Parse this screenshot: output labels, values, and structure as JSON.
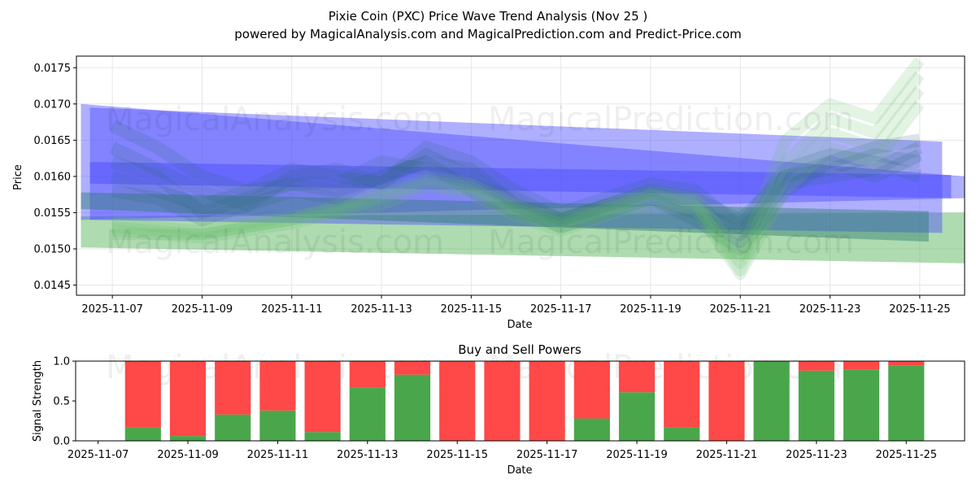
{
  "chart_data": [
    {
      "type": "area",
      "title": "Pixie Coin (PXC) Price Wave Trend Analysis (Nov 25 )",
      "subtitle": "powered by MagicalAnalysis.com and MagicalPrediction.com and Predict-Price.com",
      "xlabel": "Date",
      "ylabel": "Price",
      "xlim": [
        "2025-11-06.2",
        "2025-11-26.0"
      ],
      "ylim": [
        0.01436,
        0.01766
      ],
      "x_ticks": [
        "2025-11-07",
        "2025-11-09",
        "2025-11-11",
        "2025-11-13",
        "2025-11-15",
        "2025-11-17",
        "2025-11-19",
        "2025-11-21",
        "2025-11-23",
        "2025-11-25"
      ],
      "y_ticks": [
        "0.0145",
        "0.0150",
        "0.0155",
        "0.0160",
        "0.0165",
        "0.0170",
        "0.0175"
      ],
      "grid": true,
      "watermarks": [
        "MagicalAnalysis.com",
        "MagicalPrediction.com",
        "MagicalAnalysis.com",
        "MagicalPrediction.com"
      ],
      "day_offsets": [
        0,
        1,
        2,
        3,
        4,
        5,
        6,
        7,
        8,
        9,
        10,
        11,
        12,
        13,
        14,
        15,
        16,
        17,
        18
      ],
      "price_waves": [
        [
          0.0167,
          0.0164,
          0.016,
          0.0158,
          0.0159,
          0.0158,
          0.016,
          0.0162,
          0.0161,
          0.0156,
          0.0154,
          0.0156,
          0.0158,
          0.0157,
          0.0154,
          0.016,
          0.0162,
          0.0164,
          0.0165
        ],
        [
          0.0164,
          0.0161,
          0.0158,
          0.0156,
          0.016,
          0.0161,
          0.0159,
          0.0164,
          0.0162,
          0.0158,
          0.0155,
          0.0157,
          0.0159,
          0.0158,
          0.0153,
          0.0161,
          0.0163,
          0.0162,
          0.016
        ],
        [
          0.0162,
          0.016,
          0.0155,
          0.0157,
          0.0159,
          0.0159,
          0.0162,
          0.0161,
          0.0159,
          0.0157,
          0.0154,
          0.0156,
          0.0158,
          0.0156,
          0.0152,
          0.016,
          0.0161,
          0.0163,
          0.0162
        ],
        [
          0.016,
          0.0158,
          0.0156,
          0.0158,
          0.0161,
          0.016,
          0.0159,
          0.0163,
          0.016,
          0.0156,
          0.0153,
          0.0155,
          0.0157,
          0.0155,
          0.0151,
          0.0159,
          0.016,
          0.0161,
          0.0164
        ],
        [
          0.0158,
          0.0157,
          0.0154,
          0.0156,
          0.0158,
          0.0157,
          0.016,
          0.0162,
          0.0158,
          0.0155,
          0.0154,
          0.0156,
          0.0157,
          0.0154,
          0.015,
          0.0158,
          0.0162,
          0.016,
          0.0163
        ]
      ],
      "green_waves": [
        [
          0.0153,
          0.01525,
          0.0152,
          0.0153,
          0.0154,
          0.0156,
          0.0158,
          0.016,
          0.0159,
          0.0156,
          0.0154,
          0.0156,
          0.0158,
          0.0157,
          0.0149,
          0.0165,
          0.017,
          0.0168,
          0.0176
        ],
        [
          0.0152,
          0.0152,
          0.01515,
          0.01525,
          0.01535,
          0.0155,
          0.0157,
          0.0159,
          0.0158,
          0.0155,
          0.0153,
          0.0155,
          0.0157,
          0.0156,
          0.0148,
          0.0162,
          0.0168,
          0.0166,
          0.0174
        ],
        [
          0.0154,
          0.0153,
          0.01525,
          0.01535,
          0.01545,
          0.01555,
          0.01575,
          0.01595,
          0.01585,
          0.01555,
          0.01535,
          0.01555,
          0.01575,
          0.01565,
          0.0147,
          0.016,
          0.0166,
          0.0164,
          0.0172
        ],
        [
          0.01525,
          0.0152,
          0.0152,
          0.0153,
          0.0154,
          0.0155,
          0.0156,
          0.01585,
          0.01575,
          0.01545,
          0.01525,
          0.01545,
          0.01565,
          0.01555,
          0.01465,
          0.0158,
          0.0164,
          0.0162,
          0.017
        ]
      ],
      "blue_bands": [
        {
          "x0": "2025-11-06.5",
          "x1": "2025-11-25.5",
          "top": [
            0.01695,
            0.01648
          ],
          "bottom": [
            0.0154,
            0.01522
          ]
        },
        {
          "x0": "2025-11-06.5",
          "x1": "2025-11-25.7",
          "top": [
            0.0162,
            0.01602
          ],
          "bottom": [
            0.0159,
            0.0157
          ]
        },
        {
          "x0": "2025-11-06.3",
          "x1": "2025-11-26.0",
          "top": [
            0.017,
            0.016
          ],
          "bottom": [
            0.0154,
            0.0157
          ]
        }
      ],
      "green_band_lower": {
        "top": [
          0.01545,
          0.0155
        ],
        "bottom": [
          0.01502,
          0.0148
        ]
      },
      "teal_band": {
        "top": [
          0.01578,
          0.01552
        ],
        "bottom": [
          0.01555,
          0.0151
        ]
      }
    },
    {
      "type": "bar",
      "title": "Buy and Sell Powers",
      "xlabel": "Date",
      "ylabel": "Signal Strength",
      "ylim": [
        0,
        1
      ],
      "y_ticks": [
        "0.0",
        "0.5",
        "1.0"
      ],
      "x_ticks": [
        "2025-11-07",
        "2025-11-09",
        "2025-11-11",
        "2025-11-13",
        "2025-11-15",
        "2025-11-17",
        "2025-11-19",
        "2025-11-21",
        "2025-11-23",
        "2025-11-25"
      ],
      "categories": [
        "2025-11-08",
        "2025-11-09",
        "2025-11-10",
        "2025-11-11",
        "2025-11-12",
        "2025-11-13",
        "2025-11-14",
        "2025-11-15",
        "2025-11-16",
        "2025-11-17",
        "2025-11-18",
        "2025-11-19",
        "2025-11-20",
        "2025-11-21",
        "2025-11-22",
        "2025-11-23",
        "2025-11-24",
        "2025-11-25"
      ],
      "series": [
        {
          "name": "Buy",
          "color": "#4aa64a",
          "values": [
            0.17,
            0.06,
            0.33,
            0.38,
            0.11,
            0.67,
            0.83,
            0.0,
            0.0,
            0.0,
            0.28,
            0.61,
            0.17,
            0.0,
            1.0,
            0.88,
            0.89,
            0.94
          ]
        },
        {
          "name": "Sell",
          "color": "#ff4848",
          "values": [
            0.83,
            0.94,
            0.67,
            0.62,
            0.89,
            0.33,
            0.17,
            1.0,
            1.0,
            1.0,
            0.72,
            0.39,
            0.83,
            1.0,
            0.0,
            0.12,
            0.11,
            0.06
          ]
        }
      ],
      "watermarks": [
        "MagicalAnalysis.com",
        "MagicalPrediction.com"
      ]
    }
  ]
}
